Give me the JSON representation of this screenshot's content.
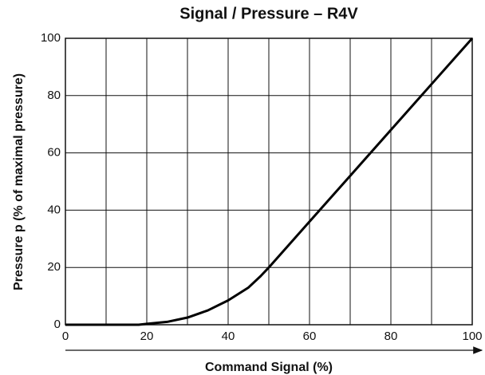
{
  "chart_data": {
    "type": "line",
    "title": "Signal / Pressure – R4V",
    "x_label": "Command Signal (%)",
    "y_label": "Pressure p (% of maximal pressure)",
    "x": [
      0,
      10,
      18,
      20,
      25,
      30,
      35,
      40,
      45,
      48,
      50,
      60,
      70,
      80,
      90,
      100
    ],
    "values": [
      0,
      0,
      0,
      0.3,
      1,
      2.5,
      5,
      8.5,
      13,
      17,
      20,
      36,
      52,
      68,
      84,
      100
    ],
    "color": "#000000",
    "xlim": [
      0,
      100
    ],
    "xticks": [
      0,
      20,
      40,
      60,
      80,
      100
    ],
    "xgrid": [
      10,
      30,
      50,
      70,
      90
    ],
    "ylim": [
      0,
      100
    ],
    "yticks": [
      0,
      20,
      40,
      60,
      80,
      100
    ],
    "grid": true
  }
}
